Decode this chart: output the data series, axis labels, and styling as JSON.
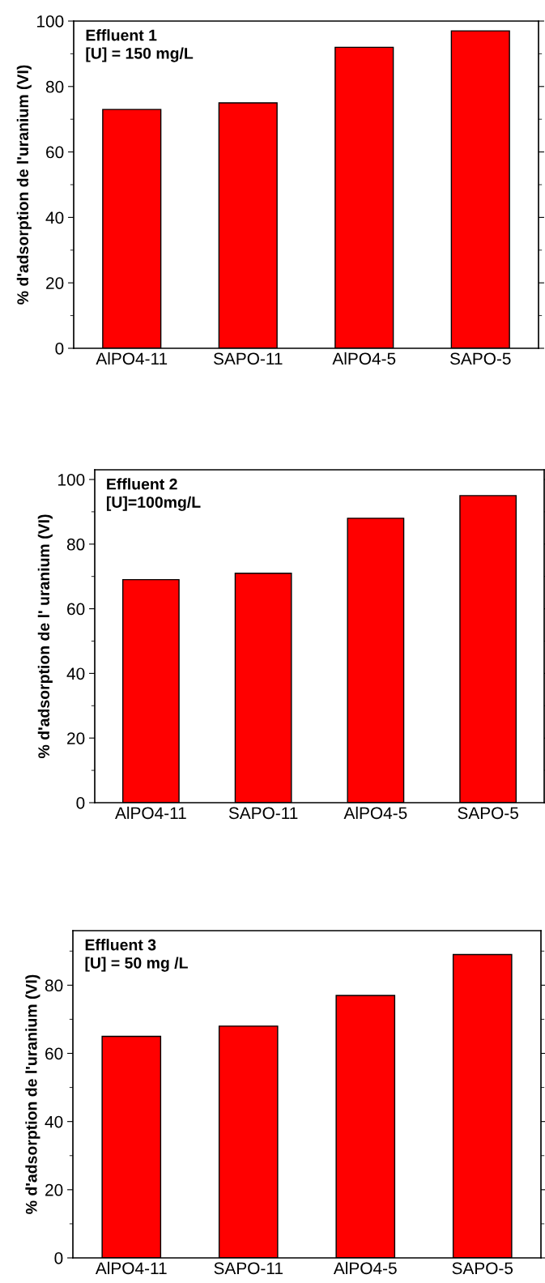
{
  "chart_data": [
    {
      "type": "bar",
      "categories": [
        "AlPO4-11",
        "SAPO-11",
        "AlPO4-5",
        "SAPO-5"
      ],
      "values": [
        73,
        75,
        92,
        97
      ],
      "color": "#ff0000",
      "ylabel": "% d'adsorption de l'uranium (VI)",
      "annotations": [
        "Effluent 1\n[U] = 150 mg/L"
      ],
      "ylim": [
        0,
        100
      ],
      "yticks": [
        0,
        20,
        40,
        60,
        80,
        100
      ],
      "grid": false,
      "legend": false
    },
    {
      "type": "bar",
      "categories": [
        "AlPO4-11",
        "SAPO-11",
        "AlPO4-5",
        "SAPO-5"
      ],
      "values": [
        69,
        71,
        88,
        95
      ],
      "color": "#ff0000",
      "ylabel": "% d'adsorption de l' uranium (VI)",
      "annotations": [
        "Effluent 2\n[U]=100mg/L"
      ],
      "ylim": [
        0,
        103
      ],
      "yticks": [
        0,
        20,
        40,
        60,
        80,
        100
      ],
      "grid": false,
      "legend": false
    },
    {
      "type": "bar",
      "categories": [
        "AlPO4-11",
        "SAPO-11",
        "AlPO4-5",
        "SAPO-5"
      ],
      "values": [
        65,
        68,
        77,
        89
      ],
      "color": "#ff0000",
      "ylabel": "% d'adsorption de l'uranium (VI)",
      "annotations": [
        "Effluent 3\n[U] = 50 mg /L"
      ],
      "ylim": [
        0,
        96
      ],
      "yticks": [
        0,
        20,
        40,
        60,
        80
      ],
      "grid": false,
      "legend": false
    }
  ]
}
